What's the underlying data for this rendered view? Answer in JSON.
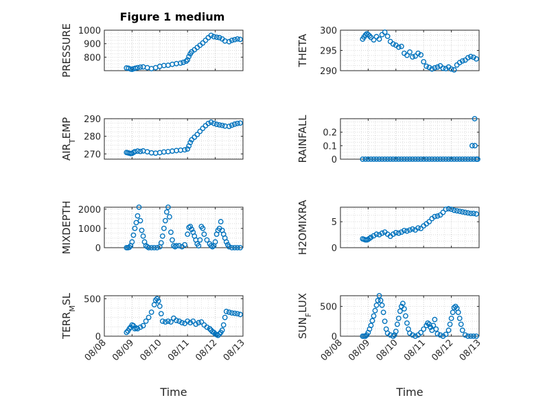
{
  "figure_title": "Figure 1 medium",
  "marker_color": "#0072bd",
  "chart_data": [
    {
      "type": "scatter",
      "title": "Figure 1 medium",
      "ylabel": "PRESSURE",
      "xlabel": "",
      "ylim": [
        700,
        1000
      ],
      "yticks": [
        800,
        900,
        1000
      ],
      "ytick_labels": [
        "800",
        "900",
        "1000"
      ],
      "xlim": [
        0,
        5
      ],
      "xtick_labels": [],
      "grid": true,
      "x": [
        0.8,
        0.87,
        0.95,
        1.0,
        1.05,
        1.12,
        1.2,
        1.3,
        1.4,
        1.55,
        1.7,
        1.85,
        2.0,
        2.15,
        2.3,
        2.45,
        2.6,
        2.75,
        2.85,
        2.95,
        3.0,
        3.05,
        3.1,
        3.15,
        3.25,
        3.35,
        3.45,
        3.55,
        3.65,
        3.75,
        3.85,
        3.95,
        4.05,
        4.15,
        4.25,
        4.35,
        4.5,
        4.6,
        4.7,
        4.8,
        4.9
      ],
      "y": [
        720,
        718,
        712,
        710,
        714,
        718,
        722,
        726,
        728,
        722,
        715,
        722,
        732,
        738,
        740,
        747,
        752,
        756,
        762,
        770,
        780,
        805,
        825,
        840,
        855,
        872,
        888,
        905,
        925,
        945,
        962,
        952,
        948,
        945,
        935,
        920,
        915,
        925,
        930,
        935,
        932
      ]
    },
    {
      "type": "scatter",
      "title": "",
      "ylabel": "THETA",
      "xlabel": "",
      "ylim": [
        290,
        300
      ],
      "yticks": [
        290,
        295,
        300
      ],
      "ytick_labels": [
        "290",
        "295",
        "300"
      ],
      "xlim": [
        0,
        5
      ],
      "xtick_labels": [],
      "grid": true,
      "x": [
        0.8,
        0.85,
        0.9,
        0.95,
        1.0,
        1.05,
        1.1,
        1.2,
        1.3,
        1.4,
        1.5,
        1.6,
        1.7,
        1.8,
        1.9,
        2.0,
        2.1,
        2.2,
        2.3,
        2.4,
        2.5,
        2.6,
        2.7,
        2.8,
        2.9,
        3.0,
        3.1,
        3.2,
        3.3,
        3.4,
        3.5,
        3.6,
        3.7,
        3.8,
        3.9,
        4.0,
        4.1,
        4.2,
        4.3,
        4.4,
        4.5,
        4.6,
        4.7,
        4.8,
        4.9
      ],
      "y": [
        297.8,
        298.3,
        298.8,
        299.1,
        298.9,
        298.6,
        298.2,
        297.6,
        298.4,
        297.8,
        298.9,
        299.5,
        298.5,
        297.2,
        296.6,
        296.3,
        295.8,
        296.0,
        294.3,
        293.8,
        294.6,
        293.4,
        293.6,
        294.3,
        293.9,
        292.2,
        291.1,
        290.8,
        290.4,
        290.7,
        290.9,
        291.2,
        290.6,
        290.5,
        290.9,
        290.4,
        290.2,
        291.4,
        292.0,
        292.4,
        292.6,
        293.2,
        293.5,
        293.3,
        292.9
      ]
    },
    {
      "type": "scatter",
      "title": "",
      "ylabel": "AIR_TEMP",
      "xlabel": "",
      "ylim": [
        267,
        290
      ],
      "yticks": [
        270,
        280,
        290
      ],
      "ytick_labels": [
        "270",
        "280",
        "290"
      ],
      "xlim": [
        0,
        5
      ],
      "xtick_labels": [],
      "grid": true,
      "x": [
        0.8,
        0.85,
        0.9,
        0.95,
        1.0,
        1.05,
        1.1,
        1.2,
        1.3,
        1.4,
        1.55,
        1.7,
        1.85,
        2.0,
        2.15,
        2.3,
        2.45,
        2.6,
        2.75,
        2.9,
        3.0,
        3.05,
        3.1,
        3.15,
        3.25,
        3.35,
        3.45,
        3.55,
        3.65,
        3.75,
        3.85,
        3.95,
        4.05,
        4.15,
        4.25,
        4.35,
        4.5,
        4.6,
        4.7,
        4.8,
        4.9
      ],
      "y": [
        270.8,
        270.6,
        270.4,
        270.2,
        270.3,
        270.8,
        271.3,
        271.6,
        271.4,
        271.7,
        271.2,
        270.6,
        270.4,
        270.7,
        271.1,
        271.3,
        271.6,
        271.9,
        272.1,
        272.3,
        272.8,
        274.5,
        276.5,
        278.0,
        279.5,
        281.0,
        282.8,
        284.5,
        286.0,
        287.3,
        288.0,
        287.3,
        286.8,
        286.5,
        286.2,
        285.8,
        285.6,
        286.3,
        286.9,
        287.3,
        287.5
      ]
    },
    {
      "type": "scatter",
      "title": "",
      "ylabel": "RAINFALL",
      "xlabel": "",
      "ylim": [
        0,
        0.3
      ],
      "yticks": [
        0,
        0.1,
        0.2
      ],
      "ytick_labels": [
        "0",
        "0.1",
        "0.2"
      ],
      "xlim": [
        0,
        5
      ],
      "xtick_labels": [],
      "grid": true,
      "x": [
        0.8,
        0.9,
        1.0,
        1.1,
        1.2,
        1.3,
        1.4,
        1.5,
        1.6,
        1.7,
        1.8,
        1.9,
        2.0,
        2.1,
        2.2,
        2.3,
        2.4,
        2.5,
        2.6,
        2.7,
        2.8,
        2.9,
        3.0,
        3.1,
        3.2,
        3.3,
        3.4,
        3.5,
        3.6,
        3.7,
        3.8,
        3.9,
        4.0,
        4.1,
        4.2,
        4.3,
        4.4,
        4.5,
        4.6,
        4.7,
        4.75,
        4.8,
        4.85,
        4.9,
        4.95,
        4.84
      ],
      "y": [
        0,
        0,
        0,
        0,
        0,
        0,
        0,
        0,
        0,
        0,
        0,
        0,
        0,
        0,
        0,
        0,
        0,
        0,
        0,
        0,
        0,
        0,
        0,
        0,
        0,
        0,
        0,
        0,
        0,
        0,
        0,
        0,
        0,
        0,
        0,
        0,
        0,
        0,
        0,
        0,
        0.1,
        0,
        0.1,
        0,
        0,
        0.3
      ]
    },
    {
      "type": "scatter",
      "title": "",
      "ylabel": "MIXDEPTH",
      "xlabel": "",
      "ylim": [
        0,
        2100
      ],
      "yticks": [
        0,
        1000,
        2000
      ],
      "ytick_labels": [
        "0",
        "1000",
        "2000"
      ],
      "xlim": [
        0,
        5
      ],
      "xtick_labels": [],
      "grid": true,
      "x": [
        0.8,
        0.85,
        0.9,
        0.95,
        1.0,
        1.05,
        1.1,
        1.15,
        1.2,
        1.25,
        1.3,
        1.35,
        1.4,
        1.45,
        1.5,
        1.55,
        1.6,
        1.7,
        1.8,
        1.9,
        2.0,
        2.05,
        2.1,
        2.15,
        2.2,
        2.25,
        2.3,
        2.35,
        2.4,
        2.45,
        2.5,
        2.55,
        2.6,
        2.7,
        2.8,
        2.9,
        3.0,
        3.05,
        3.1,
        3.15,
        3.2,
        3.25,
        3.3,
        3.35,
        3.4,
        3.45,
        3.5,
        3.55,
        3.6,
        3.7,
        3.8,
        3.85,
        3.9,
        3.95,
        4.0,
        4.05,
        4.1,
        4.15,
        4.2,
        4.25,
        4.3,
        4.35,
        4.4,
        4.45,
        4.5,
        4.6,
        4.7,
        4.8,
        4.9
      ],
      "y": [
        0,
        0,
        20,
        100,
        300,
        650,
        1000,
        1300,
        1650,
        2100,
        1400,
        900,
        600,
        300,
        100,
        50,
        0,
        0,
        0,
        0,
        50,
        250,
        600,
        1000,
        1400,
        1850,
        2100,
        1600,
        800,
        400,
        100,
        50,
        100,
        100,
        50,
        150,
        700,
        1050,
        1100,
        950,
        800,
        600,
        400,
        200,
        100,
        400,
        1100,
        1000,
        700,
        400,
        200,
        100,
        50,
        100,
        300,
        700,
        900,
        1000,
        1350,
        900,
        700,
        500,
        300,
        150,
        50,
        0,
        0,
        0,
        0
      ]
    },
    {
      "type": "scatter",
      "title": "",
      "ylabel": "H2OMIXRA",
      "xlabel": "",
      "ylim": [
        0,
        7.8
      ],
      "yticks": [
        0,
        5
      ],
      "ytick_labels": [
        "0",
        "5"
      ],
      "xlim": [
        0,
        5
      ],
      "xtick_labels": [],
      "grid": true,
      "x": [
        0.8,
        0.85,
        0.9,
        0.95,
        1.0,
        1.05,
        1.1,
        1.2,
        1.3,
        1.4,
        1.5,
        1.6,
        1.7,
        1.8,
        1.9,
        2.0,
        2.1,
        2.2,
        2.3,
        2.4,
        2.5,
        2.6,
        2.7,
        2.8,
        2.9,
        3.0,
        3.1,
        3.2,
        3.3,
        3.4,
        3.5,
        3.6,
        3.7,
        3.8,
        3.9,
        4.0,
        4.1,
        4.2,
        4.3,
        4.4,
        4.5,
        4.6,
        4.7,
        4.8,
        4.9
      ],
      "y": [
        1.7,
        1.6,
        1.5,
        1.5,
        1.6,
        1.8,
        2.0,
        2.3,
        2.6,
        2.5,
        2.8,
        3.0,
        2.6,
        2.2,
        2.6,
        2.9,
        2.8,
        3.0,
        3.3,
        3.2,
        3.4,
        3.6,
        3.4,
        3.8,
        3.7,
        4.2,
        4.6,
        5.0,
        5.6,
        6.0,
        6.1,
        6.3,
        6.8,
        7.4,
        7.5,
        7.4,
        7.2,
        7.1,
        7.0,
        6.9,
        6.8,
        6.7,
        6.6,
        6.6,
        6.5
      ]
    },
    {
      "type": "scatter",
      "title": "",
      "ylabel": "TERR_MSL",
      "xlabel": "Time",
      "ylim": [
        0,
        540
      ],
      "yticks": [
        0,
        500
      ],
      "ytick_labels": [
        "0",
        "500"
      ],
      "xlim": [
        0,
        5
      ],
      "xticks": [
        0,
        1,
        2,
        3,
        4,
        5
      ],
      "xtick_labels": [
        "08/08",
        "08/09",
        "08/10",
        "08/11",
        "08/12",
        "08/13"
      ],
      "grid": true,
      "x": [
        0.8,
        0.85,
        0.9,
        0.95,
        1.0,
        1.05,
        1.1,
        1.15,
        1.2,
        1.3,
        1.4,
        1.5,
        1.6,
        1.7,
        1.8,
        1.85,
        1.9,
        1.95,
        2.0,
        2.05,
        2.1,
        2.2,
        2.3,
        2.4,
        2.5,
        2.6,
        2.7,
        2.8,
        2.9,
        3.0,
        3.1,
        3.2,
        3.3,
        3.4,
        3.5,
        3.6,
        3.7,
        3.8,
        3.85,
        3.9,
        3.95,
        4.0,
        4.05,
        4.1,
        4.15,
        4.2,
        4.25,
        4.3,
        4.35,
        4.4,
        4.5,
        4.6,
        4.7,
        4.8,
        4.9
      ],
      "y": [
        50,
        70,
        100,
        120,
        150,
        140,
        100,
        110,
        100,
        120,
        140,
        200,
        250,
        320,
        420,
        480,
        500,
        470,
        400,
        300,
        200,
        190,
        200,
        190,
        240,
        210,
        200,
        180,
        170,
        200,
        180,
        200,
        160,
        180,
        190,
        150,
        120,
        100,
        80,
        60,
        50,
        30,
        20,
        10,
        30,
        50,
        80,
        150,
        250,
        330,
        320,
        310,
        305,
        300,
        290
      ]
    },
    {
      "type": "scatter",
      "title": "",
      "ylabel": "SUN_FLUX",
      "xlabel": "Time",
      "ylim": [
        0,
        680
      ],
      "yticks": [
        0,
        500
      ],
      "ytick_labels": [
        "0",
        "500"
      ],
      "xlim": [
        0,
        5
      ],
      "xticks": [
        0,
        1,
        2,
        3,
        4,
        5
      ],
      "xtick_labels": [
        "08/08",
        "08/09",
        "08/10",
        "08/11",
        "08/12",
        "08/13"
      ],
      "grid": true,
      "x": [
        0.8,
        0.85,
        0.9,
        0.95,
        1.0,
        1.05,
        1.1,
        1.15,
        1.2,
        1.25,
        1.3,
        1.35,
        1.4,
        1.45,
        1.5,
        1.55,
        1.6,
        1.65,
        1.7,
        1.8,
        1.9,
        1.95,
        2.0,
        2.05,
        2.1,
        2.15,
        2.2,
        2.25,
        2.3,
        2.35,
        2.4,
        2.45,
        2.5,
        2.6,
        2.7,
        2.8,
        2.9,
        3.0,
        3.1,
        3.15,
        3.2,
        3.25,
        3.3,
        3.35,
        3.4,
        3.45,
        3.5,
        3.6,
        3.7,
        3.8,
        3.9,
        3.95,
        4.0,
        4.05,
        4.1,
        4.15,
        4.2,
        4.25,
        4.3,
        4.35,
        4.4,
        4.5,
        4.6,
        4.7,
        4.8,
        4.9
      ],
      "y": [
        0,
        0,
        0,
        20,
        60,
        120,
        180,
        260,
        340,
        430,
        520,
        600,
        680,
        600,
        520,
        400,
        250,
        120,
        50,
        20,
        0,
        20,
        80,
        200,
        300,
        420,
        500,
        550,
        460,
        340,
        220,
        120,
        50,
        20,
        0,
        20,
        60,
        120,
        180,
        220,
        200,
        150,
        100,
        180,
        280,
        120,
        40,
        20,
        0,
        30,
        100,
        200,
        300,
        400,
        480,
        500,
        470,
        400,
        300,
        200,
        100,
        20,
        0,
        0,
        0,
        0
      ]
    }
  ]
}
